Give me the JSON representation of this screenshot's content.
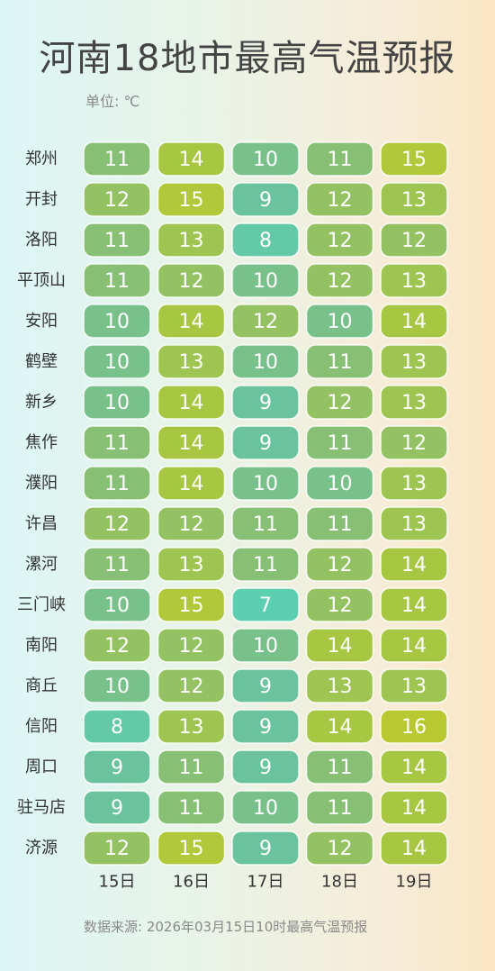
{
  "chart_data": {
    "type": "heatmap",
    "title": "河南18地市最高气温预报",
    "unit_label": "单位: ℃",
    "rows": [
      "郑州",
      "开封",
      "洛阳",
      "平顶山",
      "安阳",
      "鹤壁",
      "新乡",
      "焦作",
      "濮阳",
      "许昌",
      "漯河",
      "三门峡",
      "南阳",
      "商丘",
      "信阳",
      "周口",
      "驻马店",
      "济源"
    ],
    "columns": [
      "15日",
      "16日",
      "17日",
      "18日",
      "19日"
    ],
    "values": [
      [
        11,
        14,
        10,
        11,
        15
      ],
      [
        12,
        15,
        9,
        12,
        13
      ],
      [
        11,
        13,
        8,
        12,
        12
      ],
      [
        11,
        12,
        10,
        12,
        13
      ],
      [
        10,
        14,
        12,
        10,
        14
      ],
      [
        10,
        13,
        10,
        11,
        13
      ],
      [
        10,
        14,
        9,
        12,
        13
      ],
      [
        11,
        14,
        9,
        11,
        12
      ],
      [
        11,
        14,
        10,
        10,
        13
      ],
      [
        12,
        12,
        11,
        11,
        13
      ],
      [
        11,
        13,
        11,
        12,
        14
      ],
      [
        10,
        15,
        7,
        12,
        14
      ],
      [
        12,
        12,
        10,
        14,
        14
      ],
      [
        10,
        12,
        9,
        13,
        13
      ],
      [
        8,
        13,
        9,
        14,
        16
      ],
      [
        9,
        11,
        9,
        11,
        14
      ],
      [
        9,
        11,
        10,
        11,
        14
      ],
      [
        12,
        15,
        9,
        12,
        14
      ]
    ],
    "color_scale": {
      "min": 7,
      "max": 16,
      "stops": [
        "#5ccfb0",
        "#6cc19a",
        "#8fc06a",
        "#a5c745",
        "#b8c830"
      ]
    }
  },
  "source_text": "数据来源: 2026年03月15日10时最高气温预报"
}
